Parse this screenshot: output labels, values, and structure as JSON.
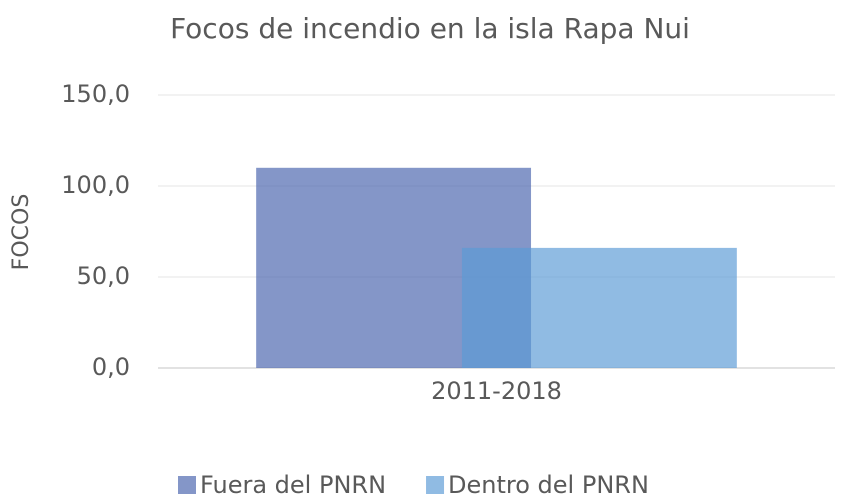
{
  "chart_data": {
    "type": "bar",
    "title": "Focos de incendio en la isla Rapa Nui",
    "y_label": "FOCOS",
    "categories": [
      "2011-2018"
    ],
    "series": [
      {
        "name": "Fuera del PNRN",
        "color": "#4a64ae",
        "values": [
          110
        ]
      },
      {
        "name": "Dentro del PNRN",
        "color": "#5b9bd5",
        "values": [
          66
        ]
      }
    ],
    "ylim": [
      0,
      150
    ],
    "yticks": [
      {
        "value": 0,
        "label": "0,0"
      },
      {
        "value": 50,
        "label": "50,0"
      },
      {
        "value": 100,
        "label": "100,0"
      },
      {
        "value": 150,
        "label": "150,0"
      }
    ],
    "grid": true,
    "legend": "bottom"
  }
}
